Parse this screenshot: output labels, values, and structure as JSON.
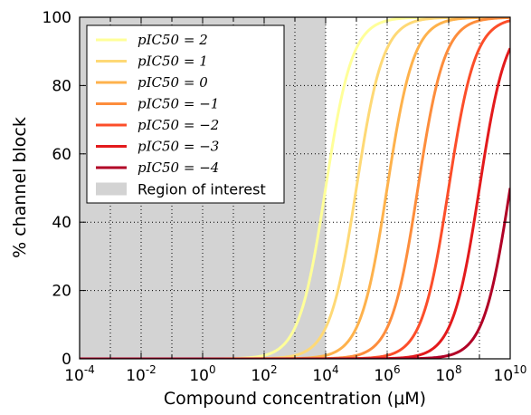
{
  "chart_data": {
    "type": "line",
    "xlabel": "Compound concentration (μM)",
    "ylabel": "% channel block",
    "x_scale": "log",
    "xlim": [
      0.0001,
      10000000000
    ],
    "ylim": [
      0,
      100
    ],
    "grid": true,
    "legend_position": "top-left",
    "hill_coefficient": 1,
    "x_ticks": [
      {
        "base": "10",
        "exp": "-4",
        "value": 0.0001
      },
      {
        "base": "10",
        "exp": "-2",
        "value": 0.01
      },
      {
        "base": "10",
        "exp": "0",
        "value": 1
      },
      {
        "base": "10",
        "exp": "2",
        "value": 100
      },
      {
        "base": "10",
        "exp": "4",
        "value": 10000
      },
      {
        "base": "10",
        "exp": "6",
        "value": 1000000
      },
      {
        "base": "10",
        "exp": "8",
        "value": 100000000
      },
      {
        "base": "10",
        "exp": "10",
        "value": 10000000000
      }
    ],
    "y_ticks": [
      "0",
      "20",
      "40",
      "60",
      "80",
      "100"
    ],
    "region_of_interest": {
      "label": "Region of interest",
      "x_range": [
        0.0001,
        10000
      ],
      "color": "#d3d3d3"
    },
    "series": [
      {
        "name": "pIC50 = 2",
        "pIC50": 2,
        "color": "#ffff99"
      },
      {
        "name": "pIC50 = 1",
        "pIC50": 1,
        "color": "#fed976"
      },
      {
        "name": "pIC50 = 0",
        "pIC50": 0,
        "color": "#feb24c"
      },
      {
        "name": "pIC50 = −1",
        "pIC50": -1,
        "color": "#fd8d3c"
      },
      {
        "name": "pIC50 = −2",
        "pIC50": -2,
        "color": "#fc4e2a"
      },
      {
        "name": "pIC50 = −3",
        "pIC50": -3,
        "color": "#e31a1c"
      },
      {
        "name": "pIC50 = −4",
        "pIC50": -4,
        "color": "#b10026"
      }
    ]
  }
}
